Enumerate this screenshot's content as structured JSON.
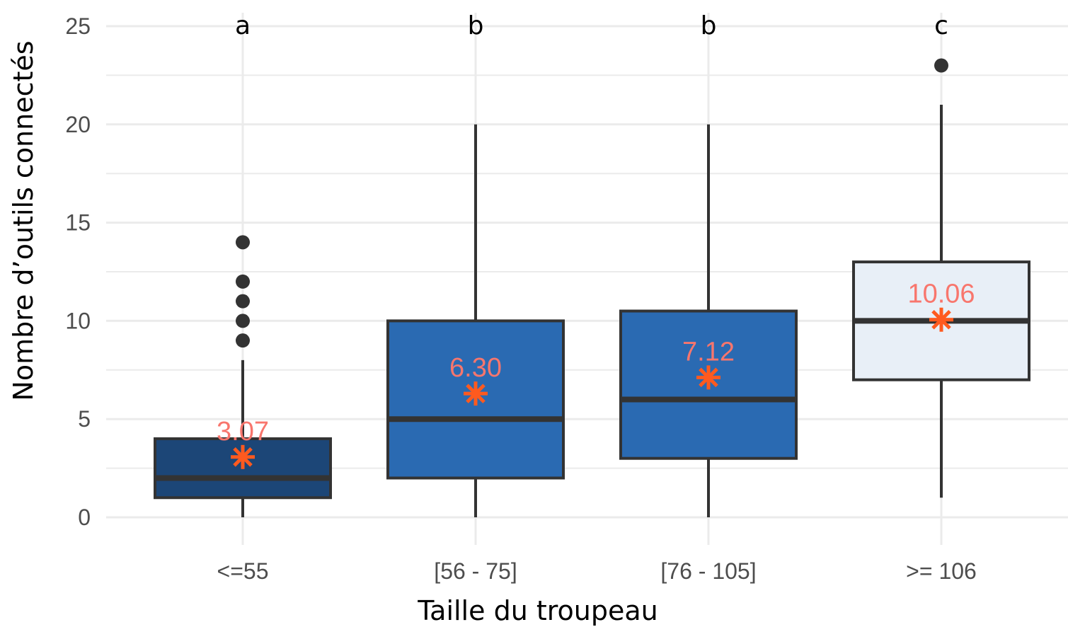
{
  "chart_data": {
    "type": "boxplot",
    "title": "",
    "xlabel": "Taille du troupeau",
    "ylabel": "Nombre d’outils connectés",
    "ylim": [
      0,
      25
    ],
    "yticks": [
      0,
      5,
      10,
      15,
      20,
      25
    ],
    "grid": true,
    "categories": [
      "<=55",
      "[56 - 75]",
      "[76 - 105]",
      ">= 106"
    ],
    "boxes": [
      {
        "category": "<=55",
        "min": 0,
        "q1": 1,
        "median": 2,
        "q3": 4,
        "max": 8,
        "outliers": [
          9,
          10,
          11,
          12,
          14
        ],
        "mean": 3.07,
        "mean_label": "3.07",
        "group_letter": "a",
        "fill": "#1c4677"
      },
      {
        "category": "[56 - 75]",
        "min": 0,
        "q1": 2,
        "median": 5,
        "q3": 10,
        "max": 20,
        "outliers": [],
        "mean": 6.3,
        "mean_label": "6.30",
        "group_letter": "b",
        "fill": "#2a6ab2"
      },
      {
        "category": "[76 - 105]",
        "min": 0,
        "q1": 3,
        "median": 6,
        "q3": 10.5,
        "max": 20,
        "outliers": [],
        "mean": 7.12,
        "mean_label": "7.12",
        "group_letter": "b",
        "fill": "#2a6ab2"
      },
      {
        "category": ">= 106",
        "min": 1,
        "q1": 7,
        "median": 10,
        "q3": 13,
        "max": 21,
        "outliers": [
          23
        ],
        "mean": 10.06,
        "mean_label": "10.06",
        "group_letter": "c",
        "fill": "#e8eff7"
      }
    ],
    "colors": {
      "grid": "#ebebeb",
      "box_stroke": "#333333",
      "mean_marker": "#ff5a1f",
      "mean_label": "#f8766d",
      "outlier": "#333333"
    }
  }
}
